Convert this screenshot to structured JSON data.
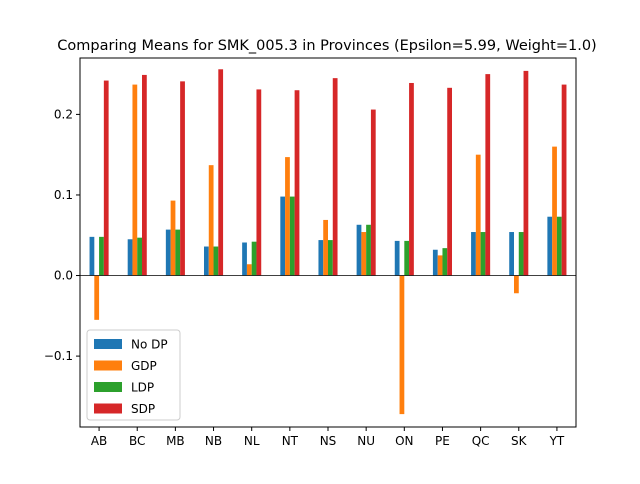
{
  "chart_data": {
    "type": "bar",
    "title": "Comparing Means for SMK_005.3 in Provinces (Epsilon=5.99, Weight=1.0)",
    "xlabel": "",
    "ylabel": "",
    "categories": [
      "AB",
      "BC",
      "MB",
      "NB",
      "NL",
      "NT",
      "NS",
      "NU",
      "ON",
      "PE",
      "QC",
      "SK",
      "YT"
    ],
    "ylim": [
      -0.188,
      0.27
    ],
    "yticks": [
      -0.1,
      0.0,
      0.1,
      0.2
    ],
    "ytick_labels": [
      "−0.1",
      "0.0",
      "0.1",
      "0.2"
    ],
    "grid": false,
    "legend_position": "lower-left",
    "series": [
      {
        "name": "No DP",
        "color": "#1f77b4",
        "values": [
          0.048,
          0.045,
          0.057,
          0.036,
          0.041,
          0.098,
          0.044,
          0.063,
          0.043,
          0.032,
          0.054,
          0.054,
          0.073
        ]
      },
      {
        "name": "GDP",
        "color": "#ff7f0e",
        "values": [
          -0.055,
          0.237,
          0.093,
          0.137,
          0.014,
          0.147,
          0.069,
          0.054,
          -0.172,
          0.025,
          0.15,
          -0.022,
          0.16
        ]
      },
      {
        "name": "LDP",
        "color": "#2ca02c",
        "values": [
          0.048,
          0.047,
          0.057,
          0.036,
          0.042,
          0.098,
          0.044,
          0.063,
          0.043,
          0.034,
          0.054,
          0.054,
          0.073
        ]
      },
      {
        "name": "SDP",
        "color": "#d62728",
        "values": [
          0.242,
          0.249,
          0.241,
          0.256,
          0.231,
          0.23,
          0.245,
          0.206,
          0.239,
          0.233,
          0.25,
          0.254,
          0.237
        ]
      }
    ]
  }
}
